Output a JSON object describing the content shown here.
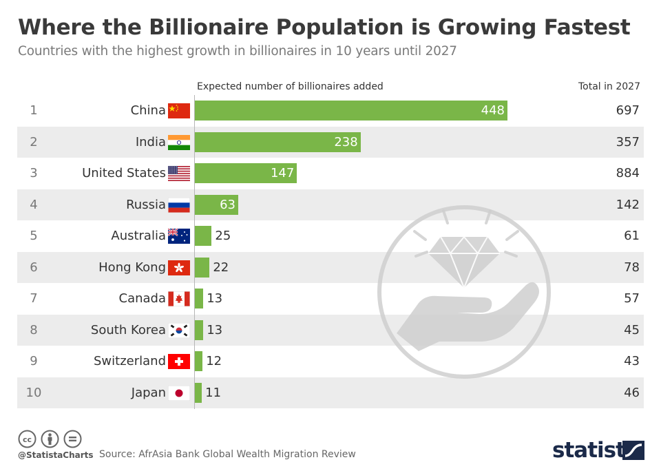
{
  "header": {
    "title": "Where the Billionaire Population is Growing Fastest",
    "subtitle": "Countries with the highest growth in billionaires in 10 years until 2027",
    "col_left": "Expected number of billionaires added",
    "col_right": "Total in 2027"
  },
  "chart_data": {
    "type": "bar",
    "orientation": "horizontal",
    "title": "Where the Billionaire Population is Growing Fastest",
    "subtitle": "Countries with the highest growth in billionaires in 10 years until 2027",
    "xlabel": "Expected number of billionaires added",
    "categories": [
      "China",
      "India",
      "United States",
      "Russia",
      "Australia",
      "Hong Kong",
      "Canada",
      "South Korea",
      "Switzerland",
      "Japan"
    ],
    "ranks": [
      "1",
      "2",
      "3",
      "4",
      "5",
      "6",
      "7",
      "8",
      "9",
      "10"
    ],
    "values": [
      448,
      238,
      147,
      63,
      25,
      22,
      13,
      13,
      12,
      11
    ],
    "totals_label": "Total in 2027",
    "totals": [
      697,
      357,
      884,
      142,
      61,
      78,
      57,
      45,
      43,
      46
    ],
    "flags": [
      "china-flag-icon",
      "india-flag-icon",
      "united-states-flag-icon",
      "russia-flag-icon",
      "australia-flag-icon",
      "hong-kong-flag-icon",
      "canada-flag-icon",
      "south-korea-flag-icon",
      "switzerland-flag-icon",
      "japan-flag-icon"
    ],
    "xlim": [
      0,
      448
    ],
    "bar_color": "#7ab648",
    "row_shade_color": "#ececec",
    "grid": false,
    "legend": "none"
  },
  "footer": {
    "handle": "@StatistaCharts",
    "source": "Source: AfrAsia Bank Global Wealth Migration Review",
    "brand": "statista",
    "license_icons": [
      "cc-icon",
      "attribution-icon",
      "no-derivatives-icon"
    ]
  },
  "colors": {
    "brand": "#1b2a49",
    "bar": "#7ab648"
  }
}
